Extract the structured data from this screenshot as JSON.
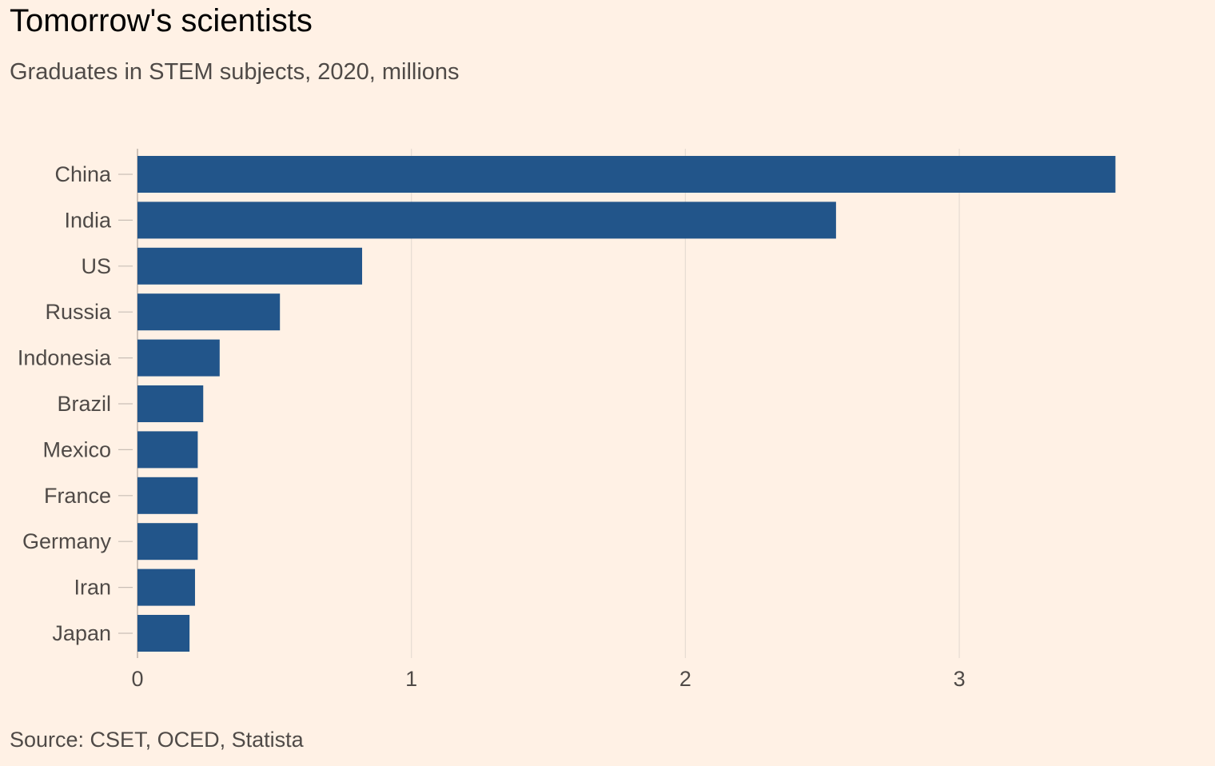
{
  "title": "Tomorrow's scientists",
  "subtitle": "Graduates in STEM subjects, 2020, millions",
  "source": "Source: CSET, OCED, Statista",
  "colors": {
    "background": "#FFF1E5",
    "bar": "#22558A",
    "grid": "#E6DCD3",
    "text": "#4f4a47"
  },
  "chart_data": {
    "type": "bar",
    "orientation": "horizontal",
    "title": "Tomorrow's scientists",
    "subtitle": "Graduates in STEM subjects, 2020, millions",
    "categories": [
      "China",
      "India",
      "US",
      "Russia",
      "Indonesia",
      "Brazil",
      "Mexico",
      "France",
      "Germany",
      "Iran",
      "Japan"
    ],
    "values": [
      3.57,
      2.55,
      0.82,
      0.52,
      0.3,
      0.24,
      0.22,
      0.22,
      0.22,
      0.21,
      0.19
    ],
    "xticks": [
      0,
      1,
      2,
      3
    ],
    "xlim": [
      0,
      3.8
    ],
    "xlabel": "",
    "ylabel": "",
    "grid": "vertical",
    "legend": "none"
  }
}
